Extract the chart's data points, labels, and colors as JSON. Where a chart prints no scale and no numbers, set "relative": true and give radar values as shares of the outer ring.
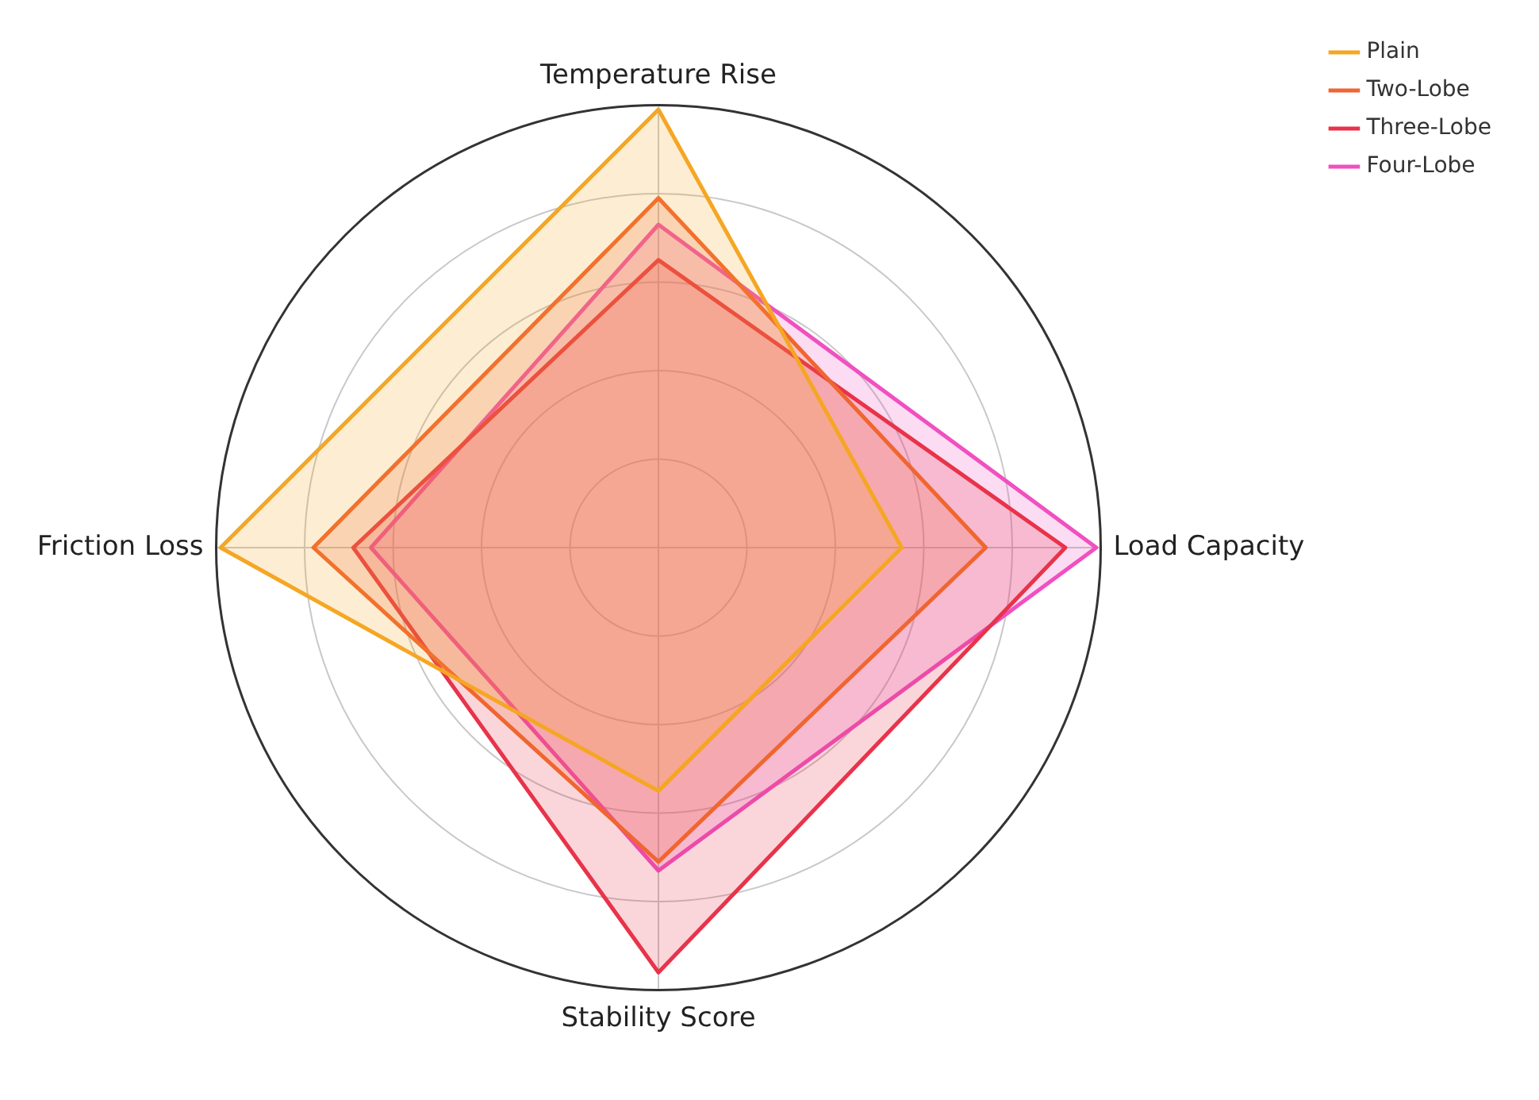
{
  "chart_data": {
    "type": "radar",
    "relative": true,
    "categories": [
      "Temperature Rise",
      "Load Capacity",
      "Stability Score",
      "Friction Loss"
    ],
    "series": [
      {
        "name": "Plain",
        "color": "#f5a623",
        "values": [
          0.99,
          0.55,
          0.55,
          0.99
        ]
      },
      {
        "name": "Two-Lobe",
        "color": "#f06530",
        "values": [
          0.79,
          0.74,
          0.71,
          0.78
        ]
      },
      {
        "name": "Three-Lobe",
        "color": "#e8334a",
        "values": [
          0.65,
          0.92,
          0.96,
          0.69
        ]
      },
      {
        "name": "Four-Lobe",
        "color": "#f050c0",
        "values": [
          0.73,
          0.99,
          0.73,
          0.65
        ]
      }
    ],
    "grid": true,
    "legend": "top right"
  }
}
